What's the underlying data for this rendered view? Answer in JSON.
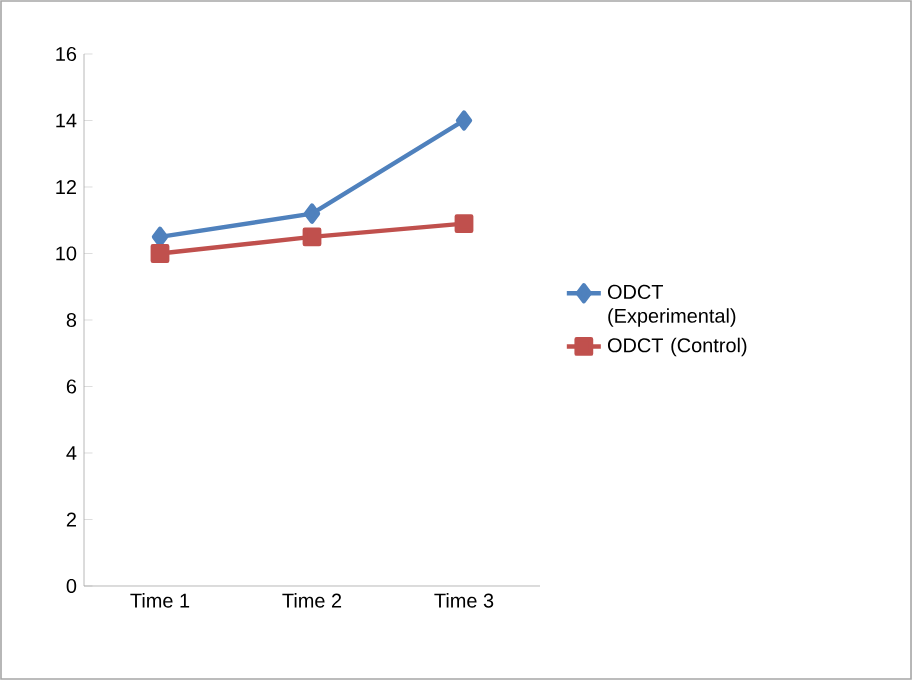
{
  "chart_data": {
    "type": "line",
    "categories": [
      "Time 1",
      "Time 2",
      "Time 3"
    ],
    "series": [
      {
        "name": "ODCT (Experimental)",
        "color": "#4f81bd",
        "marker": "diamond",
        "values": [
          10.5,
          11.2,
          14.0
        ]
      },
      {
        "name": "ODCT (Control)",
        "color": "#c0504d",
        "marker": "square",
        "values": [
          10.0,
          10.5,
          10.9
        ]
      }
    ],
    "ylim": [
      0,
      16
    ],
    "yticks": [
      0,
      2,
      4,
      6,
      8,
      10,
      12,
      14,
      16
    ],
    "grid": false,
    "legend": "right"
  }
}
